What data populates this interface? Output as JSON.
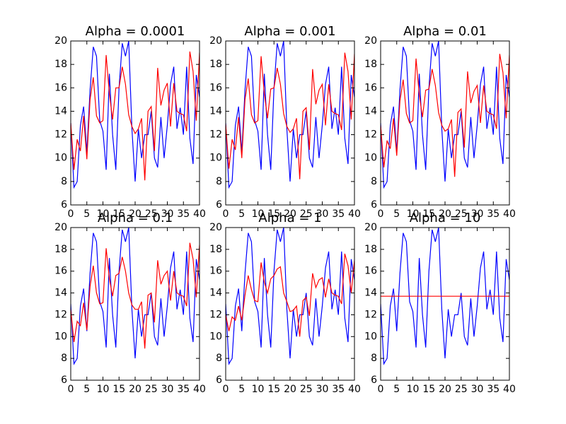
{
  "chart_data": [
    {
      "type": "line",
      "title": "Alpha = 0.0001",
      "x": [
        0,
        1,
        2,
        3,
        4,
        5,
        6,
        7,
        8,
        9,
        10,
        11,
        12,
        13,
        14,
        15,
        16,
        17,
        18,
        19,
        20,
        21,
        22,
        23,
        24,
        25,
        26,
        27,
        28,
        29,
        30,
        31,
        32,
        33,
        34,
        35,
        36,
        37,
        38,
        39,
        40
      ],
      "series": [
        {
          "color": "#0000ff",
          "values": [
            13.0,
            7.5,
            8.0,
            12.8,
            14.4,
            10.5,
            15.8,
            19.5,
            18.7,
            13.2,
            12.3,
            9.0,
            17.2,
            12.0,
            9.0,
            16.0,
            19.8,
            18.7,
            20.0,
            12.5,
            8.0,
            12.5,
            10.0,
            12.0,
            12.0,
            14.0,
            10.0,
            9.2,
            13.5,
            10.0,
            12.8,
            16.3,
            17.8,
            12.5,
            14.3,
            12.0,
            17.8,
            11.7,
            9.5,
            17.1,
            15.2
          ]
        },
        {
          "color": "#ff0000",
          "values": [
            13.0,
            9.0,
            11.6,
            10.6,
            13.6,
            9.9,
            15.0,
            16.9,
            13.6,
            13.0,
            13.2,
            18.8,
            15.5,
            13.3,
            16.0,
            16.0,
            17.8,
            16.3,
            13.7,
            12.7,
            12.1,
            12.5,
            13.4,
            8.1,
            14.0,
            14.4,
            10.6,
            17.7,
            14.5,
            15.8,
            16.4,
            12.7,
            16.4,
            14.0,
            13.8,
            13.7,
            12.3,
            19.1,
            17.4,
            13.2,
            19.0
          ]
        }
      ],
      "xlim": [
        0,
        40
      ],
      "xticks": [
        0,
        5,
        10,
        15,
        20,
        25,
        30,
        35,
        40
      ],
      "ylim": [
        6,
        20
      ],
      "yticks": [
        6,
        8,
        10,
        12,
        14,
        16,
        18,
        20
      ]
    },
    {
      "type": "line",
      "title": "Alpha = 0.001",
      "x": [
        0,
        1,
        2,
        3,
        4,
        5,
        6,
        7,
        8,
        9,
        10,
        11,
        12,
        13,
        14,
        15,
        16,
        17,
        18,
        19,
        20,
        21,
        22,
        23,
        24,
        25,
        26,
        27,
        28,
        29,
        30,
        31,
        32,
        33,
        34,
        35,
        36,
        37,
        38,
        39,
        40
      ],
      "series": [
        {
          "color": "#0000ff",
          "values": [
            13.0,
            7.5,
            8.0,
            12.8,
            14.4,
            10.5,
            15.8,
            19.5,
            18.7,
            13.2,
            12.3,
            9.0,
            17.2,
            12.0,
            9.0,
            16.0,
            19.8,
            18.7,
            20.0,
            12.5,
            8.0,
            12.5,
            10.0,
            12.0,
            12.0,
            14.0,
            10.0,
            9.2,
            13.5,
            10.0,
            12.8,
            16.3,
            17.8,
            12.5,
            14.3,
            12.0,
            17.8,
            11.7,
            9.5,
            17.1,
            15.2
          ]
        },
        {
          "color": "#ff0000",
          "values": [
            12.9,
            9.1,
            11.6,
            10.7,
            13.5,
            10.0,
            15.0,
            16.8,
            13.7,
            13.0,
            13.2,
            18.7,
            15.5,
            13.4,
            15.9,
            16.0,
            17.7,
            16.3,
            13.8,
            12.7,
            12.2,
            12.5,
            13.4,
            8.2,
            14.0,
            14.3,
            10.7,
            17.6,
            14.6,
            15.8,
            16.3,
            12.8,
            16.3,
            14.0,
            13.8,
            13.7,
            12.4,
            19.0,
            17.4,
            13.3,
            18.9
          ]
        }
      ],
      "xlim": [
        0,
        40
      ],
      "xticks": [
        0,
        5,
        10,
        15,
        20,
        25,
        30,
        35,
        40
      ],
      "ylim": [
        6,
        20
      ],
      "yticks": [
        6,
        8,
        10,
        12,
        14,
        16,
        18,
        20
      ]
    },
    {
      "type": "line",
      "title": "Alpha = 0.01",
      "x": [
        0,
        1,
        2,
        3,
        4,
        5,
        6,
        7,
        8,
        9,
        10,
        11,
        12,
        13,
        14,
        15,
        16,
        17,
        18,
        19,
        20,
        21,
        22,
        23,
        24,
        25,
        26,
        27,
        28,
        29,
        30,
        31,
        32,
        33,
        34,
        35,
        36,
        37,
        38,
        39,
        40
      ],
      "series": [
        {
          "color": "#0000ff",
          "values": [
            13.0,
            7.5,
            8.0,
            12.8,
            14.4,
            10.5,
            15.8,
            19.5,
            18.7,
            13.2,
            12.3,
            9.0,
            17.2,
            12.0,
            9.0,
            16.0,
            19.8,
            18.7,
            20.0,
            12.5,
            8.0,
            12.5,
            10.0,
            12.0,
            12.0,
            14.0,
            10.0,
            9.2,
            13.5,
            10.0,
            12.8,
            16.3,
            17.8,
            12.5,
            14.3,
            12.0,
            17.8,
            11.7,
            9.5,
            17.1,
            15.2
          ]
        },
        {
          "color": "#ff0000",
          "values": [
            12.8,
            9.2,
            11.5,
            10.8,
            13.4,
            10.2,
            14.9,
            16.7,
            13.8,
            13.0,
            13.2,
            18.5,
            15.4,
            13.5,
            15.8,
            15.9,
            17.6,
            16.2,
            13.9,
            12.8,
            12.3,
            12.5,
            13.3,
            8.4,
            13.9,
            14.2,
            10.9,
            17.4,
            14.7,
            15.7,
            16.2,
            13.0,
            16.2,
            14.0,
            13.8,
            13.7,
            12.5,
            18.9,
            17.3,
            13.4,
            18.8
          ]
        }
      ],
      "xlim": [
        0,
        40
      ],
      "xticks": [
        0,
        5,
        10,
        15,
        20,
        25,
        30,
        35,
        40
      ],
      "ylim": [
        6,
        20
      ],
      "yticks": [
        6,
        8,
        10,
        12,
        14,
        16,
        18,
        20
      ]
    },
    {
      "type": "line",
      "title": "Alpha = 0.1",
      "x": [
        0,
        1,
        2,
        3,
        4,
        5,
        6,
        7,
        8,
        9,
        10,
        11,
        12,
        13,
        14,
        15,
        16,
        17,
        18,
        19,
        20,
        21,
        22,
        23,
        24,
        25,
        26,
        27,
        28,
        29,
        30,
        31,
        32,
        33,
        34,
        35,
        36,
        37,
        38,
        39,
        40
      ],
      "series": [
        {
          "color": "#0000ff",
          "values": [
            13.0,
            7.5,
            8.0,
            12.8,
            14.4,
            10.5,
            15.8,
            19.5,
            18.7,
            13.2,
            12.3,
            9.0,
            17.2,
            12.0,
            9.0,
            16.0,
            19.8,
            18.7,
            20.0,
            12.5,
            8.0,
            12.5,
            10.0,
            12.0,
            12.0,
            14.0,
            10.0,
            9.2,
            13.5,
            10.0,
            12.8,
            16.3,
            17.8,
            12.5,
            14.3,
            12.0,
            17.8,
            11.7,
            9.5,
            17.1,
            15.2
          ]
        },
        {
          "color": "#ff0000",
          "values": [
            12.5,
            9.5,
            11.4,
            11.0,
            13.1,
            10.6,
            14.6,
            16.5,
            14.0,
            13.0,
            13.1,
            18.1,
            15.3,
            13.7,
            15.6,
            15.8,
            17.3,
            16.0,
            14.0,
            12.9,
            12.5,
            12.5,
            13.2,
            8.9,
            13.8,
            14.0,
            11.3,
            17.0,
            14.8,
            15.6,
            16.0,
            13.3,
            16.0,
            14.0,
            13.8,
            13.7,
            12.8,
            18.6,
            17.1,
            13.6,
            18.4
          ]
        }
      ],
      "xlim": [
        0,
        40
      ],
      "xticks": [
        0,
        5,
        10,
        15,
        20,
        25,
        30,
        35,
        40
      ],
      "ylim": [
        6,
        20
      ],
      "yticks": [
        6,
        8,
        10,
        12,
        14,
        16,
        18,
        20
      ]
    },
    {
      "type": "line",
      "title": "Alpha = 1",
      "x": [
        0,
        1,
        2,
        3,
        4,
        5,
        6,
        7,
        8,
        9,
        10,
        11,
        12,
        13,
        14,
        15,
        16,
        17,
        18,
        19,
        20,
        21,
        22,
        23,
        24,
        25,
        26,
        27,
        28,
        29,
        30,
        31,
        32,
        33,
        34,
        35,
        36,
        37,
        38,
        39,
        40
      ],
      "series": [
        {
          "color": "#0000ff",
          "values": [
            13.0,
            7.5,
            8.0,
            12.8,
            14.4,
            10.5,
            15.8,
            19.5,
            18.7,
            13.2,
            12.3,
            9.0,
            17.2,
            12.0,
            9.0,
            16.0,
            19.8,
            18.7,
            20.0,
            12.5,
            8.0,
            12.5,
            10.0,
            12.0,
            12.0,
            14.0,
            10.0,
            9.2,
            13.5,
            10.0,
            12.8,
            16.3,
            17.8,
            12.5,
            14.3,
            12.0,
            17.8,
            11.7,
            9.5,
            17.1,
            15.2
          ]
        },
        {
          "color": "#ff0000",
          "values": [
            12.0,
            10.5,
            11.8,
            11.5,
            12.8,
            11.5,
            13.8,
            15.6,
            14.3,
            13.3,
            13.2,
            16.8,
            15.0,
            14.0,
            15.3,
            15.6,
            16.2,
            16.4,
            14.0,
            13.2,
            12.3,
            12.4,
            12.8,
            10.0,
            13.3,
            13.6,
            11.9,
            15.8,
            14.5,
            15.2,
            15.4,
            13.6,
            15.3,
            14.0,
            13.8,
            13.7,
            13.0,
            17.6,
            16.5,
            14.0,
            17.0
          ]
        }
      ],
      "xlim": [
        0,
        40
      ],
      "xticks": [
        0,
        5,
        10,
        15,
        20,
        25,
        30,
        35,
        40
      ],
      "ylim": [
        6,
        20
      ],
      "yticks": [
        6,
        8,
        10,
        12,
        14,
        16,
        18,
        20
      ]
    },
    {
      "type": "line",
      "title": "Alpha = 10",
      "x": [
        0,
        1,
        2,
        3,
        4,
        5,
        6,
        7,
        8,
        9,
        10,
        11,
        12,
        13,
        14,
        15,
        16,
        17,
        18,
        19,
        20,
        21,
        22,
        23,
        24,
        25,
        26,
        27,
        28,
        29,
        30,
        31,
        32,
        33,
        34,
        35,
        36,
        37,
        38,
        39,
        40
      ],
      "series": [
        {
          "color": "#0000ff",
          "values": [
            13.0,
            7.5,
            8.0,
            12.8,
            14.4,
            10.5,
            15.8,
            19.5,
            18.7,
            13.2,
            12.3,
            9.0,
            17.2,
            12.0,
            9.0,
            16.0,
            19.8,
            18.7,
            20.0,
            12.5,
            8.0,
            12.5,
            10.0,
            12.0,
            12.0,
            14.0,
            10.0,
            9.2,
            13.5,
            10.0,
            12.8,
            16.3,
            17.8,
            12.5,
            14.3,
            12.0,
            17.8,
            11.7,
            9.5,
            17.1,
            15.2
          ]
        },
        {
          "color": "#ff0000",
          "values": [
            13.7,
            13.7,
            13.7,
            13.7,
            13.7,
            13.7,
            13.7,
            13.7,
            13.7,
            13.7,
            13.7,
            13.7,
            13.7,
            13.7,
            13.7,
            13.7,
            13.7,
            13.7,
            13.7,
            13.7,
            13.7,
            13.7,
            13.7,
            13.7,
            13.7,
            13.7,
            13.7,
            13.7,
            13.7,
            13.7,
            13.7,
            13.7,
            13.7,
            13.7,
            13.7,
            13.7,
            13.7,
            13.7,
            13.7,
            13.7,
            13.7
          ]
        }
      ],
      "xlim": [
        0,
        40
      ],
      "xticks": [
        0,
        5,
        10,
        15,
        20,
        25,
        30,
        35,
        40
      ],
      "ylim": [
        6,
        20
      ],
      "yticks": [
        6,
        8,
        10,
        12,
        14,
        16,
        18,
        20
      ]
    }
  ]
}
